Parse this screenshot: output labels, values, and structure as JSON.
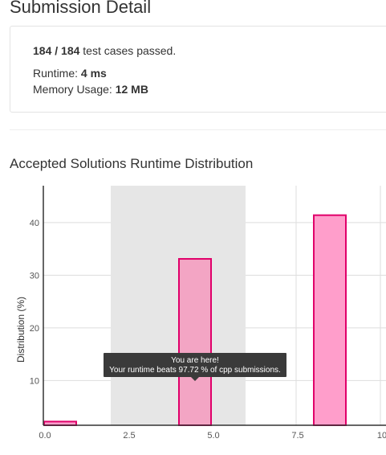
{
  "page": {
    "title": "Submission Detail"
  },
  "result": {
    "cases_passed": "184 / 184",
    "cases_suffix": "test cases passed.",
    "runtime_label": "Runtime:",
    "runtime_value": "4 ms",
    "memory_label": "Memory Usage:",
    "memory_value": "12 MB"
  },
  "section": {
    "title": "Accepted Solutions Runtime Distribution"
  },
  "tooltip": {
    "title": "You are here!",
    "message": "Your runtime beats 97.72 % of cpp submissions."
  },
  "colors": {
    "bar_fill": "#ff9ecb",
    "bar_stroke": "#e0006a",
    "current_bar_fill": "#f3a5c4",
    "highlight_band": "#e6e6e6",
    "grid": "#dddddd",
    "axis": "#333333",
    "tooltip_bg": "#3a3a3a"
  },
  "chart_data": {
    "type": "bar",
    "x": [
      0.5,
      4.5,
      8.5
    ],
    "values": [
      0.7,
      31.6,
      39.9
    ],
    "bar_width": 1,
    "xlim": [
      0,
      10
    ],
    "ylim": [
      1.5,
      47
    ],
    "xticks": [
      0,
      2.5,
      5,
      7.5,
      10
    ],
    "xtick_labels": [
      "0.0",
      "2.5",
      "5.0",
      "7.5",
      "10"
    ],
    "yticks": [
      10,
      20,
      30,
      40
    ],
    "ylabel": "Distribution (%)",
    "highlight_range": [
      2,
      6
    ],
    "current_bar_index": 1,
    "grid": true
  }
}
